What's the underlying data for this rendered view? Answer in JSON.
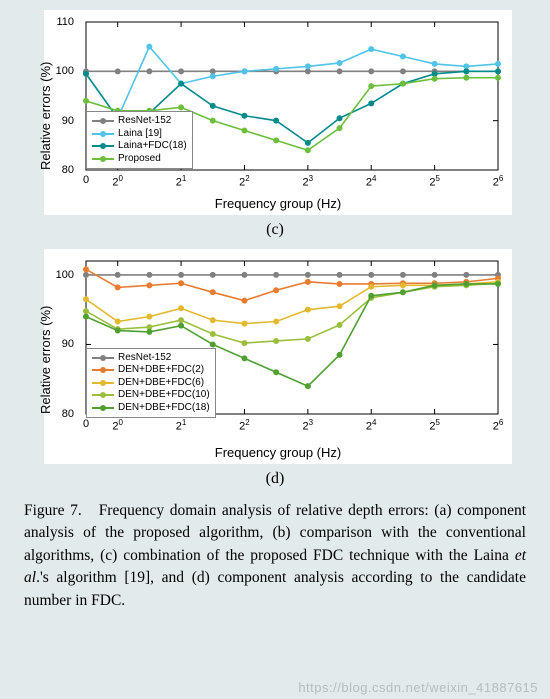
{
  "caption": {
    "label": "Figure 7.",
    "text": "Frequency domain analysis of relative depth errors: (a) component analysis of the proposed algorithm, (b) comparison with the conventional algorithms, (c) combination of the proposed FDC technique with the Laina et al.'s algorithm [19], and (d) component analysis according to the candidate number in FDC."
  },
  "watermark": "https://blog.csdn.net/weixin_41887615",
  "chart_c": {
    "type": "line",
    "sublabel": "(c)",
    "xlabel": "Frequency group (Hz)",
    "ylabel": "Relative errors (%)",
    "x_categories": [
      "0",
      "2⁰",
      "",
      "2¹",
      "",
      "2²",
      "",
      "2³",
      "",
      "2⁴",
      "",
      "2⁵",
      "",
      "2⁶"
    ],
    "x_tick_labels": [
      "0",
      "2^0",
      "2^1",
      "2^2",
      "2^3",
      "2^4",
      "2^5",
      "2^6"
    ],
    "ylim": [
      80,
      110
    ],
    "ytick_step": 10,
    "background_color": "#ffffff",
    "grid_color": "none",
    "axis_color": "#000000",
    "marker_style": "circle",
    "marker_size": 5,
    "line_width": 1.6,
    "legend_pos": "lower-left",
    "series": [
      {
        "name": "ResNet-152",
        "color": "#808080",
        "values": [
          100,
          100,
          100,
          100,
          100,
          100,
          100,
          100,
          100,
          100,
          100,
          100,
          100,
          100
        ]
      },
      {
        "name": "Laina [19]",
        "color": "#4fc3e8",
        "values": [
          99.5,
          90.5,
          105,
          97.5,
          99,
          100,
          100.5,
          101,
          101.7,
          104.5,
          103,
          101.5,
          101,
          101.5
        ]
      },
      {
        "name": "Laina+FDC(18)",
        "color": "#008b8b",
        "values": [
          99.5,
          90.5,
          91.5,
          97.5,
          93,
          91,
          90,
          85.5,
          90.5,
          93.5,
          97.5,
          99.5,
          100,
          100
        ]
      },
      {
        "name": "Proposed",
        "color": "#6cbf3d",
        "values": [
          94,
          92,
          92,
          92.7,
          90,
          88,
          86,
          84,
          88.5,
          97,
          97.5,
          98.5,
          98.7,
          98.7
        ]
      }
    ]
  },
  "chart_d": {
    "type": "line",
    "sublabel": "(d)",
    "xlabel": "Frequency group (Hz)",
    "ylabel": "Relative errors (%)",
    "x_tick_labels": [
      "0",
      "2^0",
      "2^1",
      "2^2",
      "2^3",
      "2^4",
      "2^5",
      "2^6"
    ],
    "ylim": [
      80,
      102
    ],
    "yticks": [
      80,
      90,
      100
    ],
    "background_color": "#ffffff",
    "axis_color": "#000000",
    "marker_style": "circle",
    "marker_size": 5,
    "line_width": 1.6,
    "legend_pos": "lower-left",
    "series": [
      {
        "name": "ResNet-152",
        "color": "#808080",
        "values": [
          100,
          100,
          100,
          100,
          100,
          100,
          100,
          100,
          100,
          100,
          100,
          100,
          100,
          100
        ]
      },
      {
        "name": "DEN+DBE+FDC(2)",
        "color": "#e87b2f",
        "values": [
          100.8,
          98.2,
          98.5,
          98.8,
          97.5,
          96.3,
          97.8,
          99,
          98.7,
          98.7,
          98.8,
          98.8,
          99,
          99.5
        ]
      },
      {
        "name": "DEN+DBE+FDC(6)",
        "color": "#e3b82e",
        "values": [
          96.5,
          93.3,
          94,
          95.2,
          93.5,
          93,
          93.3,
          95,
          95.5,
          98.3,
          98.5,
          98.5,
          98.7,
          99
        ]
      },
      {
        "name": "DEN+DBE+FDC(10)",
        "color": "#9bbf3d",
        "values": [
          94.8,
          92.2,
          92.5,
          93.5,
          91.5,
          90.2,
          90.5,
          90.8,
          92.8,
          96.7,
          97.5,
          98.3,
          98.5,
          98.8
        ]
      },
      {
        "name": "DEN+DBE+FDC(18)",
        "color": "#4fa031",
        "values": [
          94,
          92,
          91.8,
          92.7,
          90,
          88,
          86,
          84,
          88.5,
          97,
          97.5,
          98.5,
          98.7,
          98.7
        ]
      }
    ]
  }
}
